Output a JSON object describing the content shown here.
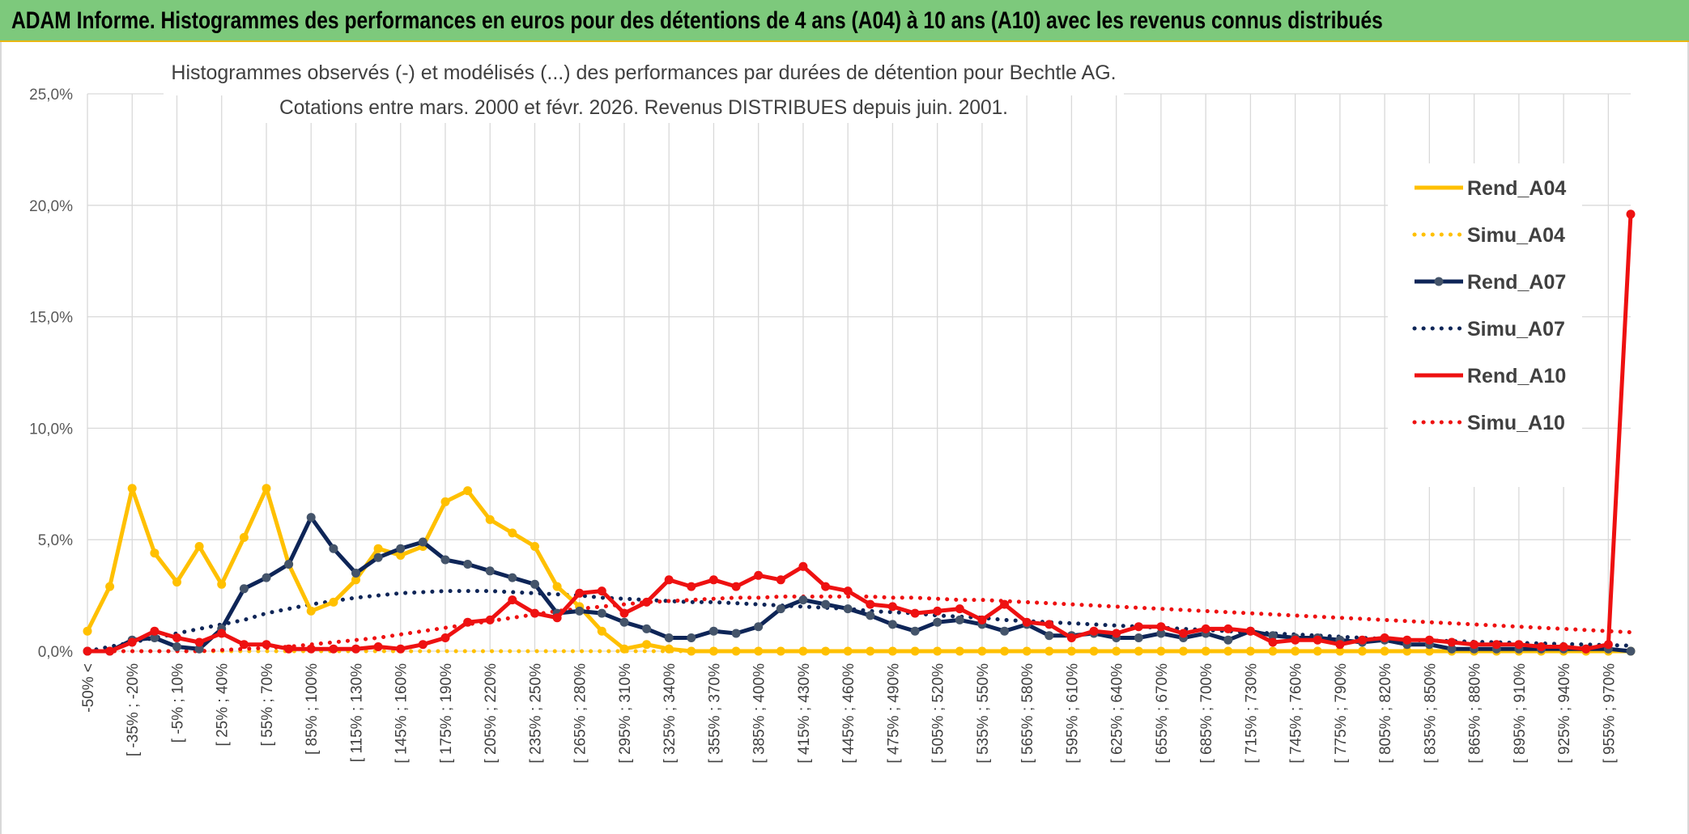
{
  "banner": {
    "title": "ADAM Informe. Histogrammes des performances en euros pour des détentions de 4 ans (A04) à 10 ans (A10) avec les revenus connus distribués"
  },
  "colors": {
    "banner_bg": "#7dc97c",
    "A04": "#ffc000",
    "A07": "#0e2557",
    "A07_marker": "#44546a",
    "A10": "#ee1111"
  },
  "chart_data": {
    "type": "line",
    "title_lines": [
      "Histogrammes observés (-) et modélisés (...) des performances par durées de détention pour Bechtle AG.",
      "Cotations entre mars. 2000 et févr. 2026. Revenus DISTRIBUES depuis juin. 2001."
    ],
    "ylim": [
      0,
      25
    ],
    "y_ticks": [
      "0,0%",
      "5,0%",
      "10,0%",
      "15,0%",
      "20,0%",
      "25,0%"
    ],
    "x_tick_labels": [
      "-50% <",
      "[ -35% ; -20%",
      "[ -5% ; 10%",
      "[ 25% ; 40%",
      "[ 55% ; 70%",
      "[ 85% ; 100%",
      "[ 115% ; 130%",
      "[ 145% ; 160%",
      "[ 175% ; 190%",
      "[ 205% ; 220%",
      "[ 235% ; 250%",
      "[ 265% ; 280%",
      "[ 295% ; 310%",
      "[ 325% ; 340%",
      "[ 355% ; 370%",
      "[ 385% ; 400%",
      "[ 415% ; 430%",
      "[ 445% ; 460%",
      "[ 475% ; 490%",
      "[ 505% ; 520%",
      "[ 535% ; 550%",
      "[ 565% ; 580%",
      "[ 595% ; 610%",
      "[ 625% ; 640%",
      "[ 655% ; 670%",
      "[ 685% ; 700%",
      "[ 715% ; 730%",
      "[ 745% ; 760%",
      "[ 775% ; 790%",
      "[ 805% ; 820%",
      "[ 835% ; 850%",
      "[ 865% ; 880%",
      "[ 895% ; 910%",
      "[ 925% ; 940%",
      "[ 955% ; 970%"
    ],
    "grid": true,
    "legend_position": "right",
    "series": [
      {
        "name": "Rend_A04",
        "style": "solid",
        "color_key": "A04",
        "values": [
          0.9,
          2.9,
          7.3,
          4.4,
          3.1,
          4.7,
          3.0,
          5.1,
          7.3,
          3.9,
          1.8,
          2.2,
          3.2,
          4.6,
          4.3,
          4.7,
          6.7,
          7.2,
          5.9,
          5.3,
          4.7,
          2.9,
          2.0,
          0.9,
          0.1,
          0.3,
          0.1,
          0,
          0,
          0,
          0,
          0,
          0,
          0,
          0,
          0,
          0,
          0,
          0,
          0,
          0,
          0,
          0,
          0,
          0,
          0,
          0,
          0,
          0,
          0,
          0,
          0,
          0,
          0,
          0,
          0,
          0,
          0,
          0,
          0,
          0,
          0,
          0,
          0,
          0,
          0,
          0,
          0,
          0,
          0
        ]
      },
      {
        "name": "Simu_A04",
        "style": "dotted",
        "color_key": "A04",
        "values": [
          0,
          0,
          0,
          0,
          0,
          0,
          0,
          0,
          0,
          0,
          0,
          0,
          0,
          0,
          0,
          0,
          0,
          0,
          0,
          0,
          0,
          0,
          0,
          0,
          0,
          0,
          0,
          0,
          0,
          0,
          0,
          0,
          0,
          0,
          0,
          0,
          0,
          0,
          0,
          0,
          0,
          0,
          0,
          0,
          0,
          0,
          0,
          0,
          0,
          0,
          0,
          0,
          0,
          0,
          0,
          0,
          0,
          0,
          0,
          0,
          0,
          0,
          0,
          0,
          0,
          0,
          0,
          0,
          0,
          0
        ]
      },
      {
        "name": "Rend_A07",
        "style": "solid",
        "color_key": "A07",
        "values": [
          0,
          0,
          0.5,
          0.6,
          0.2,
          0.1,
          1.0,
          2.8,
          3.3,
          3.9,
          6.0,
          4.6,
          3.5,
          4.2,
          4.6,
          4.9,
          4.1,
          3.9,
          3.6,
          3.3,
          3.0,
          1.7,
          1.8,
          1.7,
          1.3,
          1.0,
          0.6,
          0.6,
          0.9,
          0.8,
          1.1,
          1.9,
          2.3,
          2.1,
          1.9,
          1.6,
          1.2,
          0.9,
          1.3,
          1.4,
          1.2,
          0.9,
          1.2,
          0.7,
          0.7,
          0.8,
          0.6,
          0.6,
          0.8,
          0.6,
          0.8,
          0.5,
          0.9,
          0.7,
          0.6,
          0.6,
          0.5,
          0.4,
          0.5,
          0.3,
          0.3,
          0.1,
          0.1,
          0.1,
          0.1,
          0.1,
          0.1,
          0.1,
          0.1,
          0
        ]
      },
      {
        "name": "Simu_A07",
        "style": "dotted",
        "color_key": "A07",
        "values": [
          0,
          0.2,
          0.4,
          0.6,
          0.8,
          1.0,
          1.2,
          1.4,
          1.7,
          1.9,
          2.1,
          2.25,
          2.4,
          2.5,
          2.6,
          2.65,
          2.7,
          2.7,
          2.7,
          2.65,
          2.6,
          2.55,
          2.5,
          2.4,
          2.35,
          2.3,
          2.25,
          2.2,
          2.2,
          2.15,
          2.1,
          2.05,
          2.0,
          1.95,
          1.9,
          1.8,
          1.75,
          1.7,
          1.6,
          1.55,
          1.5,
          1.4,
          1.35,
          1.3,
          1.25,
          1.2,
          1.15,
          1.1,
          1.05,
          1.0,
          0.95,
          0.9,
          0.85,
          0.8,
          0.75,
          0.7,
          0.65,
          0.6,
          0.55,
          0.5,
          0.48,
          0.45,
          0.42,
          0.4,
          0.37,
          0.35,
          0.32,
          0.3,
          0.27,
          0.25
        ]
      },
      {
        "name": "Rend_A10",
        "style": "solid",
        "color_key": "A10",
        "values": [
          0,
          0,
          0.4,
          0.9,
          0.6,
          0.4,
          0.8,
          0.3,
          0.3,
          0.1,
          0.1,
          0.1,
          0.1,
          0.2,
          0.1,
          0.3,
          0.6,
          1.3,
          1.4,
          2.3,
          1.7,
          1.5,
          2.6,
          2.7,
          1.7,
          2.2,
          3.2,
          2.9,
          3.2,
          2.9,
          3.4,
          3.2,
          3.8,
          2.9,
          2.7,
          2.1,
          2.0,
          1.7,
          1.8,
          1.9,
          1.4,
          2.1,
          1.3,
          1.2,
          0.6,
          0.9,
          0.8,
          1.1,
          1.1,
          0.8,
          1.0,
          1.0,
          0.9,
          0.4,
          0.5,
          0.5,
          0.3,
          0.5,
          0.6,
          0.5,
          0.5,
          0.4,
          0.3,
          0.3,
          0.3,
          0.2,
          0.2,
          0.1,
          0.3,
          19.6
        ]
      },
      {
        "name": "Simu_A10",
        "style": "dotted",
        "color_key": "A10",
        "values": [
          0,
          0,
          0,
          0,
          0,
          0,
          0.05,
          0.1,
          0.15,
          0.2,
          0.3,
          0.4,
          0.5,
          0.6,
          0.75,
          0.9,
          1.05,
          1.2,
          1.35,
          1.5,
          1.65,
          1.8,
          1.9,
          2.0,
          2.1,
          2.2,
          2.25,
          2.3,
          2.35,
          2.4,
          2.4,
          2.45,
          2.45,
          2.45,
          2.45,
          2.45,
          2.4,
          2.4,
          2.35,
          2.3,
          2.3,
          2.25,
          2.2,
          2.15,
          2.1,
          2.05,
          2.0,
          1.95,
          1.9,
          1.85,
          1.8,
          1.75,
          1.7,
          1.65,
          1.6,
          1.55,
          1.5,
          1.45,
          1.4,
          1.35,
          1.3,
          1.25,
          1.2,
          1.15,
          1.1,
          1.05,
          1.0,
          0.95,
          0.9,
          0.85
        ]
      }
    ]
  }
}
